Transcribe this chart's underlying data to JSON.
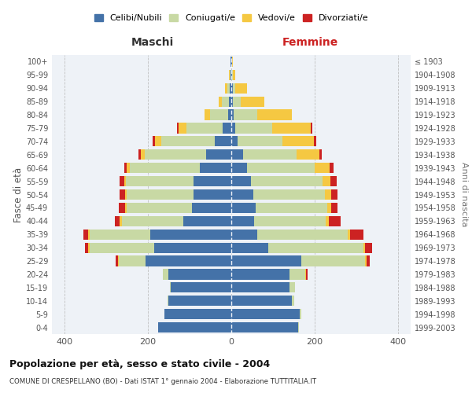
{
  "age_groups": [
    "0-4",
    "5-9",
    "10-14",
    "15-19",
    "20-24",
    "25-29",
    "30-34",
    "35-39",
    "40-44",
    "45-49",
    "50-54",
    "55-59",
    "60-64",
    "65-69",
    "70-74",
    "75-79",
    "80-84",
    "85-89",
    "90-94",
    "95-99",
    "100+"
  ],
  "birth_years": [
    "1999-2003",
    "1994-1998",
    "1989-1993",
    "1984-1988",
    "1979-1983",
    "1974-1978",
    "1969-1973",
    "1964-1968",
    "1959-1963",
    "1954-1958",
    "1949-1953",
    "1944-1948",
    "1939-1943",
    "1934-1938",
    "1929-1933",
    "1924-1928",
    "1919-1923",
    "1914-1918",
    "1909-1913",
    "1904-1908",
    "≤ 1903"
  ],
  "male": {
    "celibi": [
      175,
      160,
      150,
      145,
      150,
      205,
      185,
      195,
      115,
      95,
      90,
      90,
      75,
      60,
      40,
      20,
      8,
      5,
      3,
      2,
      1
    ],
    "coniugati": [
      0,
      0,
      2,
      3,
      15,
      65,
      155,
      145,
      148,
      155,
      160,
      162,
      168,
      148,
      128,
      88,
      42,
      18,
      7,
      2,
      0
    ],
    "vedovi": [
      0,
      0,
      0,
      0,
      0,
      2,
      3,
      4,
      4,
      4,
      5,
      5,
      7,
      9,
      14,
      18,
      15,
      8,
      5,
      2,
      1
    ],
    "divorziati": [
      0,
      0,
      0,
      0,
      0,
      5,
      8,
      10,
      12,
      15,
      13,
      10,
      7,
      5,
      7,
      5,
      0,
      0,
      0,
      0,
      0
    ]
  },
  "female": {
    "nubili": [
      160,
      165,
      145,
      140,
      140,
      168,
      88,
      62,
      55,
      58,
      52,
      48,
      38,
      28,
      15,
      10,
      5,
      4,
      3,
      2,
      2
    ],
    "coniugate": [
      3,
      3,
      5,
      12,
      38,
      152,
      228,
      218,
      172,
      172,
      172,
      170,
      162,
      128,
      108,
      88,
      58,
      18,
      7,
      2,
      0
    ],
    "vedove": [
      0,
      0,
      0,
      0,
      2,
      4,
      4,
      4,
      7,
      10,
      15,
      20,
      35,
      55,
      75,
      92,
      82,
      58,
      28,
      5,
      2
    ],
    "divorziate": [
      0,
      0,
      0,
      0,
      2,
      8,
      18,
      32,
      28,
      15,
      15,
      15,
      10,
      5,
      5,
      5,
      0,
      0,
      0,
      0,
      0
    ]
  },
  "colors": {
    "celibi": "#4472a8",
    "coniugati": "#c8d9a4",
    "vedovi": "#f5c842",
    "divorziati": "#cc2222"
  },
  "legend_labels": [
    "Celibi/Nubili",
    "Coniugati/e",
    "Vedovi/e",
    "Divorziati/e"
  ],
  "title": "Popolazione per età, sesso e stato civile - 2004",
  "subtitle": "COMUNE DI CRESPELLANO (BO) - Dati ISTAT 1° gennaio 2004 - Elaborazione TUTTITALIA.IT",
  "ylabel_left": "Fasce di età",
  "ylabel_right": "Anni di nascita",
  "xlabel_left": "Maschi",
  "xlabel_right": "Femmine",
  "xlim": 430,
  "bg_color": "#ffffff",
  "plot_bg": "#eef2f7",
  "grid_color": "#bbbbbb"
}
